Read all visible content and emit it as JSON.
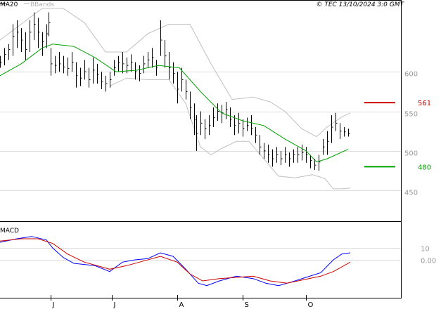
{
  "header": {
    "ma_label": "MA20",
    "bbands_label": "BBands",
    "copyright": "© TEC 13/10/2024 3:0 GMT"
  },
  "macd_label": "MACD",
  "colors": {
    "candle": "#000000",
    "ma": "#00a000",
    "bband": "#c0c0c0",
    "macd": "#0000ff",
    "signal": "#cc0000",
    "level_red": "#cc0000",
    "level_green": "#00a000",
    "grid": "#dddddd"
  },
  "chart_data": [
    {
      "type": "candlestick",
      "title": "",
      "x_labels": [
        "J",
        "J",
        "A",
        "S",
        "O"
      ],
      "x_label_days": [
        24,
        53,
        84,
        115,
        145
      ],
      "ylim": [
        420,
        680
      ],
      "yticks": [
        450,
        500,
        550,
        600
      ],
      "ytick_labels": [
        "450",
        "500",
        "550",
        "600"
      ],
      "levels": [
        {
          "label": "561",
          "value": 561,
          "color": "red"
        },
        {
          "label": "480",
          "value": 480,
          "color": "green"
        }
      ],
      "day_range": [
        0,
        190
      ],
      "ohlc": [
        {
          "d": 0,
          "h": 620,
          "l": 605,
          "c": 612
        },
        {
          "d": 2,
          "h": 630,
          "l": 608,
          "c": 622
        },
        {
          "d": 4,
          "h": 635,
          "l": 615,
          "c": 628
        },
        {
          "d": 6,
          "h": 660,
          "l": 620,
          "c": 645
        },
        {
          "d": 8,
          "h": 665,
          "l": 630,
          "c": 650
        },
        {
          "d": 10,
          "h": 655,
          "l": 625,
          "c": 640
        },
        {
          "d": 12,
          "h": 650,
          "l": 615,
          "c": 628
        },
        {
          "d": 14,
          "h": 665,
          "l": 625,
          "c": 650
        },
        {
          "d": 16,
          "h": 675,
          "l": 640,
          "c": 660
        },
        {
          "d": 18,
          "h": 668,
          "l": 630,
          "c": 650
        },
        {
          "d": 20,
          "h": 650,
          "l": 620,
          "c": 638
        },
        {
          "d": 22,
          "h": 660,
          "l": 630,
          "c": 648
        },
        {
          "d": 23,
          "h": 675,
          "l": 645,
          "c": 662
        },
        {
          "d": 24,
          "h": 630,
          "l": 595,
          "c": 610
        },
        {
          "d": 26,
          "h": 620,
          "l": 598,
          "c": 608
        },
        {
          "d": 28,
          "h": 625,
          "l": 600,
          "c": 610
        },
        {
          "d": 30,
          "h": 620,
          "l": 598,
          "c": 606
        },
        {
          "d": 32,
          "h": 618,
          "l": 595,
          "c": 604
        },
        {
          "d": 34,
          "h": 625,
          "l": 600,
          "c": 612
        },
        {
          "d": 36,
          "h": 612,
          "l": 580,
          "c": 595
        },
        {
          "d": 38,
          "h": 605,
          "l": 582,
          "c": 592
        },
        {
          "d": 40,
          "h": 615,
          "l": 590,
          "c": 600
        },
        {
          "d": 42,
          "h": 605,
          "l": 580,
          "c": 590
        },
        {
          "d": 44,
          "h": 618,
          "l": 585,
          "c": 602
        },
        {
          "d": 46,
          "h": 610,
          "l": 585,
          "c": 596
        },
        {
          "d": 48,
          "h": 600,
          "l": 578,
          "c": 588
        },
        {
          "d": 50,
          "h": 595,
          "l": 575,
          "c": 585
        },
        {
          "d": 52,
          "h": 600,
          "l": 580,
          "c": 590
        },
        {
          "d": 54,
          "h": 615,
          "l": 595,
          "c": 605
        },
        {
          "d": 56,
          "h": 620,
          "l": 600,
          "c": 612
        },
        {
          "d": 58,
          "h": 625,
          "l": 598,
          "c": 610
        },
        {
          "d": 60,
          "h": 618,
          "l": 598,
          "c": 608
        },
        {
          "d": 62,
          "h": 622,
          "l": 600,
          "c": 612
        },
        {
          "d": 64,
          "h": 612,
          "l": 590,
          "c": 600
        },
        {
          "d": 66,
          "h": 608,
          "l": 588,
          "c": 598
        },
        {
          "d": 68,
          "h": 620,
          "l": 598,
          "c": 610
        },
        {
          "d": 70,
          "h": 625,
          "l": 605,
          "c": 615
        },
        {
          "d": 72,
          "h": 630,
          "l": 605,
          "c": 618
        },
        {
          "d": 74,
          "h": 615,
          "l": 595,
          "c": 606
        },
        {
          "d": 76,
          "h": 665,
          "l": 620,
          "c": 640
        },
        {
          "d": 78,
          "h": 640,
          "l": 605,
          "c": 620
        },
        {
          "d": 80,
          "h": 625,
          "l": 590,
          "c": 605
        },
        {
          "d": 82,
          "h": 612,
          "l": 585,
          "c": 598
        },
        {
          "d": 84,
          "h": 600,
          "l": 560,
          "c": 578
        },
        {
          "d": 86,
          "h": 605,
          "l": 575,
          "c": 590
        },
        {
          "d": 88,
          "h": 590,
          "l": 565,
          "c": 575
        },
        {
          "d": 90,
          "h": 575,
          "l": 540,
          "c": 555
        },
        {
          "d": 92,
          "h": 560,
          "l": 520,
          "c": 540
        },
        {
          "d": 93,
          "h": 545,
          "l": 500,
          "c": 522
        },
        {
          "d": 95,
          "h": 550,
          "l": 520,
          "c": 535
        },
        {
          "d": 97,
          "h": 540,
          "l": 515,
          "c": 528
        },
        {
          "d": 99,
          "h": 545,
          "l": 520,
          "c": 532
        },
        {
          "d": 101,
          "h": 555,
          "l": 530,
          "c": 542
        },
        {
          "d": 103,
          "h": 560,
          "l": 538,
          "c": 550
        },
        {
          "d": 105,
          "h": 558,
          "l": 535,
          "c": 548
        },
        {
          "d": 107,
          "h": 562,
          "l": 540,
          "c": 552
        },
        {
          "d": 109,
          "h": 555,
          "l": 530,
          "c": 540
        },
        {
          "d": 111,
          "h": 545,
          "l": 520,
          "c": 532
        },
        {
          "d": 113,
          "h": 548,
          "l": 522,
          "c": 535
        },
        {
          "d": 115,
          "h": 540,
          "l": 518,
          "c": 528
        },
        {
          "d": 117,
          "h": 542,
          "l": 525,
          "c": 532
        },
        {
          "d": 119,
          "h": 545,
          "l": 520,
          "c": 528
        },
        {
          "d": 121,
          "h": 530,
          "l": 510,
          "c": 520
        },
        {
          "d": 123,
          "h": 520,
          "l": 495,
          "c": 505
        },
        {
          "d": 125,
          "h": 510,
          "l": 490,
          "c": 500
        },
        {
          "d": 127,
          "h": 508,
          "l": 485,
          "c": 495
        },
        {
          "d": 129,
          "h": 502,
          "l": 480,
          "c": 490
        },
        {
          "d": 131,
          "h": 505,
          "l": 485,
          "c": 495
        },
        {
          "d": 133,
          "h": 500,
          "l": 482,
          "c": 490
        },
        {
          "d": 135,
          "h": 505,
          "l": 485,
          "c": 495
        },
        {
          "d": 137,
          "h": 498,
          "l": 480,
          "c": 490
        },
        {
          "d": 139,
          "h": 502,
          "l": 485,
          "c": 495
        },
        {
          "d": 141,
          "h": 505,
          "l": 485,
          "c": 495
        },
        {
          "d": 143,
          "h": 508,
          "l": 488,
          "c": 498
        },
        {
          "d": 145,
          "h": 505,
          "l": 485,
          "c": 495
        },
        {
          "d": 147,
          "h": 495,
          "l": 478,
          "c": 488
        },
        {
          "d": 149,
          "h": 490,
          "l": 476,
          "c": 482
        },
        {
          "d": 151,
          "h": 495,
          "l": 475,
          "c": 486
        },
        {
          "d": 153,
          "h": 515,
          "l": 495,
          "c": 505
        },
        {
          "d": 155,
          "h": 525,
          "l": 495,
          "c": 512
        },
        {
          "d": 157,
          "h": 545,
          "l": 510,
          "c": 530
        },
        {
          "d": 159,
          "h": 548,
          "l": 525,
          "c": 535
        },
        {
          "d": 161,
          "h": 535,
          "l": 515,
          "c": 525
        },
        {
          "d": 163,
          "h": 530,
          "l": 518,
          "c": 524
        },
        {
          "d": 165,
          "h": 528,
          "l": 518,
          "c": 522
        }
      ],
      "ma20": [
        {
          "d": 0,
          "v": 595
        },
        {
          "d": 10,
          "v": 610
        },
        {
          "d": 20,
          "v": 630
        },
        {
          "d": 25,
          "v": 635
        },
        {
          "d": 35,
          "v": 632
        },
        {
          "d": 45,
          "v": 618
        },
        {
          "d": 55,
          "v": 600
        },
        {
          "d": 65,
          "v": 602
        },
        {
          "d": 75,
          "v": 608
        },
        {
          "d": 85,
          "v": 605
        },
        {
          "d": 95,
          "v": 575
        },
        {
          "d": 105,
          "v": 548
        },
        {
          "d": 115,
          "v": 538
        },
        {
          "d": 125,
          "v": 532
        },
        {
          "d": 135,
          "v": 515
        },
        {
          "d": 145,
          "v": 500
        },
        {
          "d": 150,
          "v": 486
        },
        {
          "d": 155,
          "v": 490
        },
        {
          "d": 165,
          "v": 502
        }
      ],
      "bband_upper": [
        {
          "d": 0,
          "v": 640
        },
        {
          "d": 10,
          "v": 660
        },
        {
          "d": 20,
          "v": 680
        },
        {
          "d": 30,
          "v": 680
        },
        {
          "d": 40,
          "v": 662
        },
        {
          "d": 50,
          "v": 625
        },
        {
          "d": 60,
          "v": 625
        },
        {
          "d": 70,
          "v": 648
        },
        {
          "d": 80,
          "v": 660
        },
        {
          "d": 90,
          "v": 660
        },
        {
          "d": 100,
          "v": 610
        },
        {
          "d": 110,
          "v": 565
        },
        {
          "d": 120,
          "v": 568
        },
        {
          "d": 128,
          "v": 562
        },
        {
          "d": 135,
          "v": 550
        },
        {
          "d": 143,
          "v": 528
        },
        {
          "d": 150,
          "v": 518
        },
        {
          "d": 155,
          "v": 530
        },
        {
          "d": 162,
          "v": 543
        },
        {
          "d": 166,
          "v": 548
        }
      ],
      "bband_lower": [
        {
          "d": 52,
          "v": 582
        },
        {
          "d": 60,
          "v": 592
        },
        {
          "d": 70,
          "v": 590
        },
        {
          "d": 80,
          "v": 590
        },
        {
          "d": 88,
          "v": 560
        },
        {
          "d": 95,
          "v": 505
        },
        {
          "d": 100,
          "v": 495
        },
        {
          "d": 105,
          "v": 503
        },
        {
          "d": 112,
          "v": 512
        },
        {
          "d": 118,
          "v": 512
        },
        {
          "d": 125,
          "v": 490
        },
        {
          "d": 132,
          "v": 468
        },
        {
          "d": 140,
          "v": 466
        },
        {
          "d": 148,
          "v": 470
        },
        {
          "d": 154,
          "v": 465
        },
        {
          "d": 158,
          "v": 452
        },
        {
          "d": 162,
          "v": 452
        },
        {
          "d": 166,
          "v": 453
        }
      ]
    },
    {
      "type": "line",
      "title": "",
      "ylim": [
        -30,
        30
      ],
      "yticks": [
        10,
        0
      ],
      "ytick_labels": [
        "10",
        "0.00"
      ],
      "day_range": [
        0,
        190
      ],
      "series": [
        {
          "name": "",
          "color": "macd",
          "points": [
            {
              "d": 0,
              "v": 15
            },
            {
              "d": 8,
              "v": 18
            },
            {
              "d": 15,
              "v": 20
            },
            {
              "d": 22,
              "v": 17
            },
            {
              "d": 25,
              "v": 10
            },
            {
              "d": 30,
              "v": 2
            },
            {
              "d": 35,
              "v": -3
            },
            {
              "d": 45,
              "v": -5
            },
            {
              "d": 52,
              "v": -10
            },
            {
              "d": 58,
              "v": -2
            },
            {
              "d": 64,
              "v": 0
            },
            {
              "d": 70,
              "v": 1
            },
            {
              "d": 76,
              "v": 6
            },
            {
              "d": 82,
              "v": 3
            },
            {
              "d": 88,
              "v": -8
            },
            {
              "d": 94,
              "v": -20
            },
            {
              "d": 98,
              "v": -22
            },
            {
              "d": 104,
              "v": -18
            },
            {
              "d": 112,
              "v": -14
            },
            {
              "d": 120,
              "v": -16
            },
            {
              "d": 126,
              "v": -20
            },
            {
              "d": 132,
              "v": -22
            },
            {
              "d": 138,
              "v": -19
            },
            {
              "d": 145,
              "v": -15
            },
            {
              "d": 152,
              "v": -11
            },
            {
              "d": 158,
              "v": 0
            },
            {
              "d": 162,
              "v": 5
            },
            {
              "d": 166,
              "v": 6
            }
          ]
        },
        {
          "name": "",
          "color": "signal",
          "points": [
            {
              "d": 0,
              "v": 16
            },
            {
              "d": 10,
              "v": 18
            },
            {
              "d": 18,
              "v": 18
            },
            {
              "d": 25,
              "v": 14
            },
            {
              "d": 32,
              "v": 5
            },
            {
              "d": 40,
              "v": -2
            },
            {
              "d": 52,
              "v": -8
            },
            {
              "d": 60,
              "v": -5
            },
            {
              "d": 68,
              "v": -1
            },
            {
              "d": 76,
              "v": 3
            },
            {
              "d": 84,
              "v": -2
            },
            {
              "d": 90,
              "v": -12
            },
            {
              "d": 96,
              "v": -18
            },
            {
              "d": 104,
              "v": -16
            },
            {
              "d": 112,
              "v": -15
            },
            {
              "d": 120,
              "v": -14
            },
            {
              "d": 128,
              "v": -18
            },
            {
              "d": 136,
              "v": -20
            },
            {
              "d": 144,
              "v": -17
            },
            {
              "d": 152,
              "v": -14
            },
            {
              "d": 158,
              "v": -10
            },
            {
              "d": 166,
              "v": -2
            }
          ]
        }
      ]
    }
  ]
}
